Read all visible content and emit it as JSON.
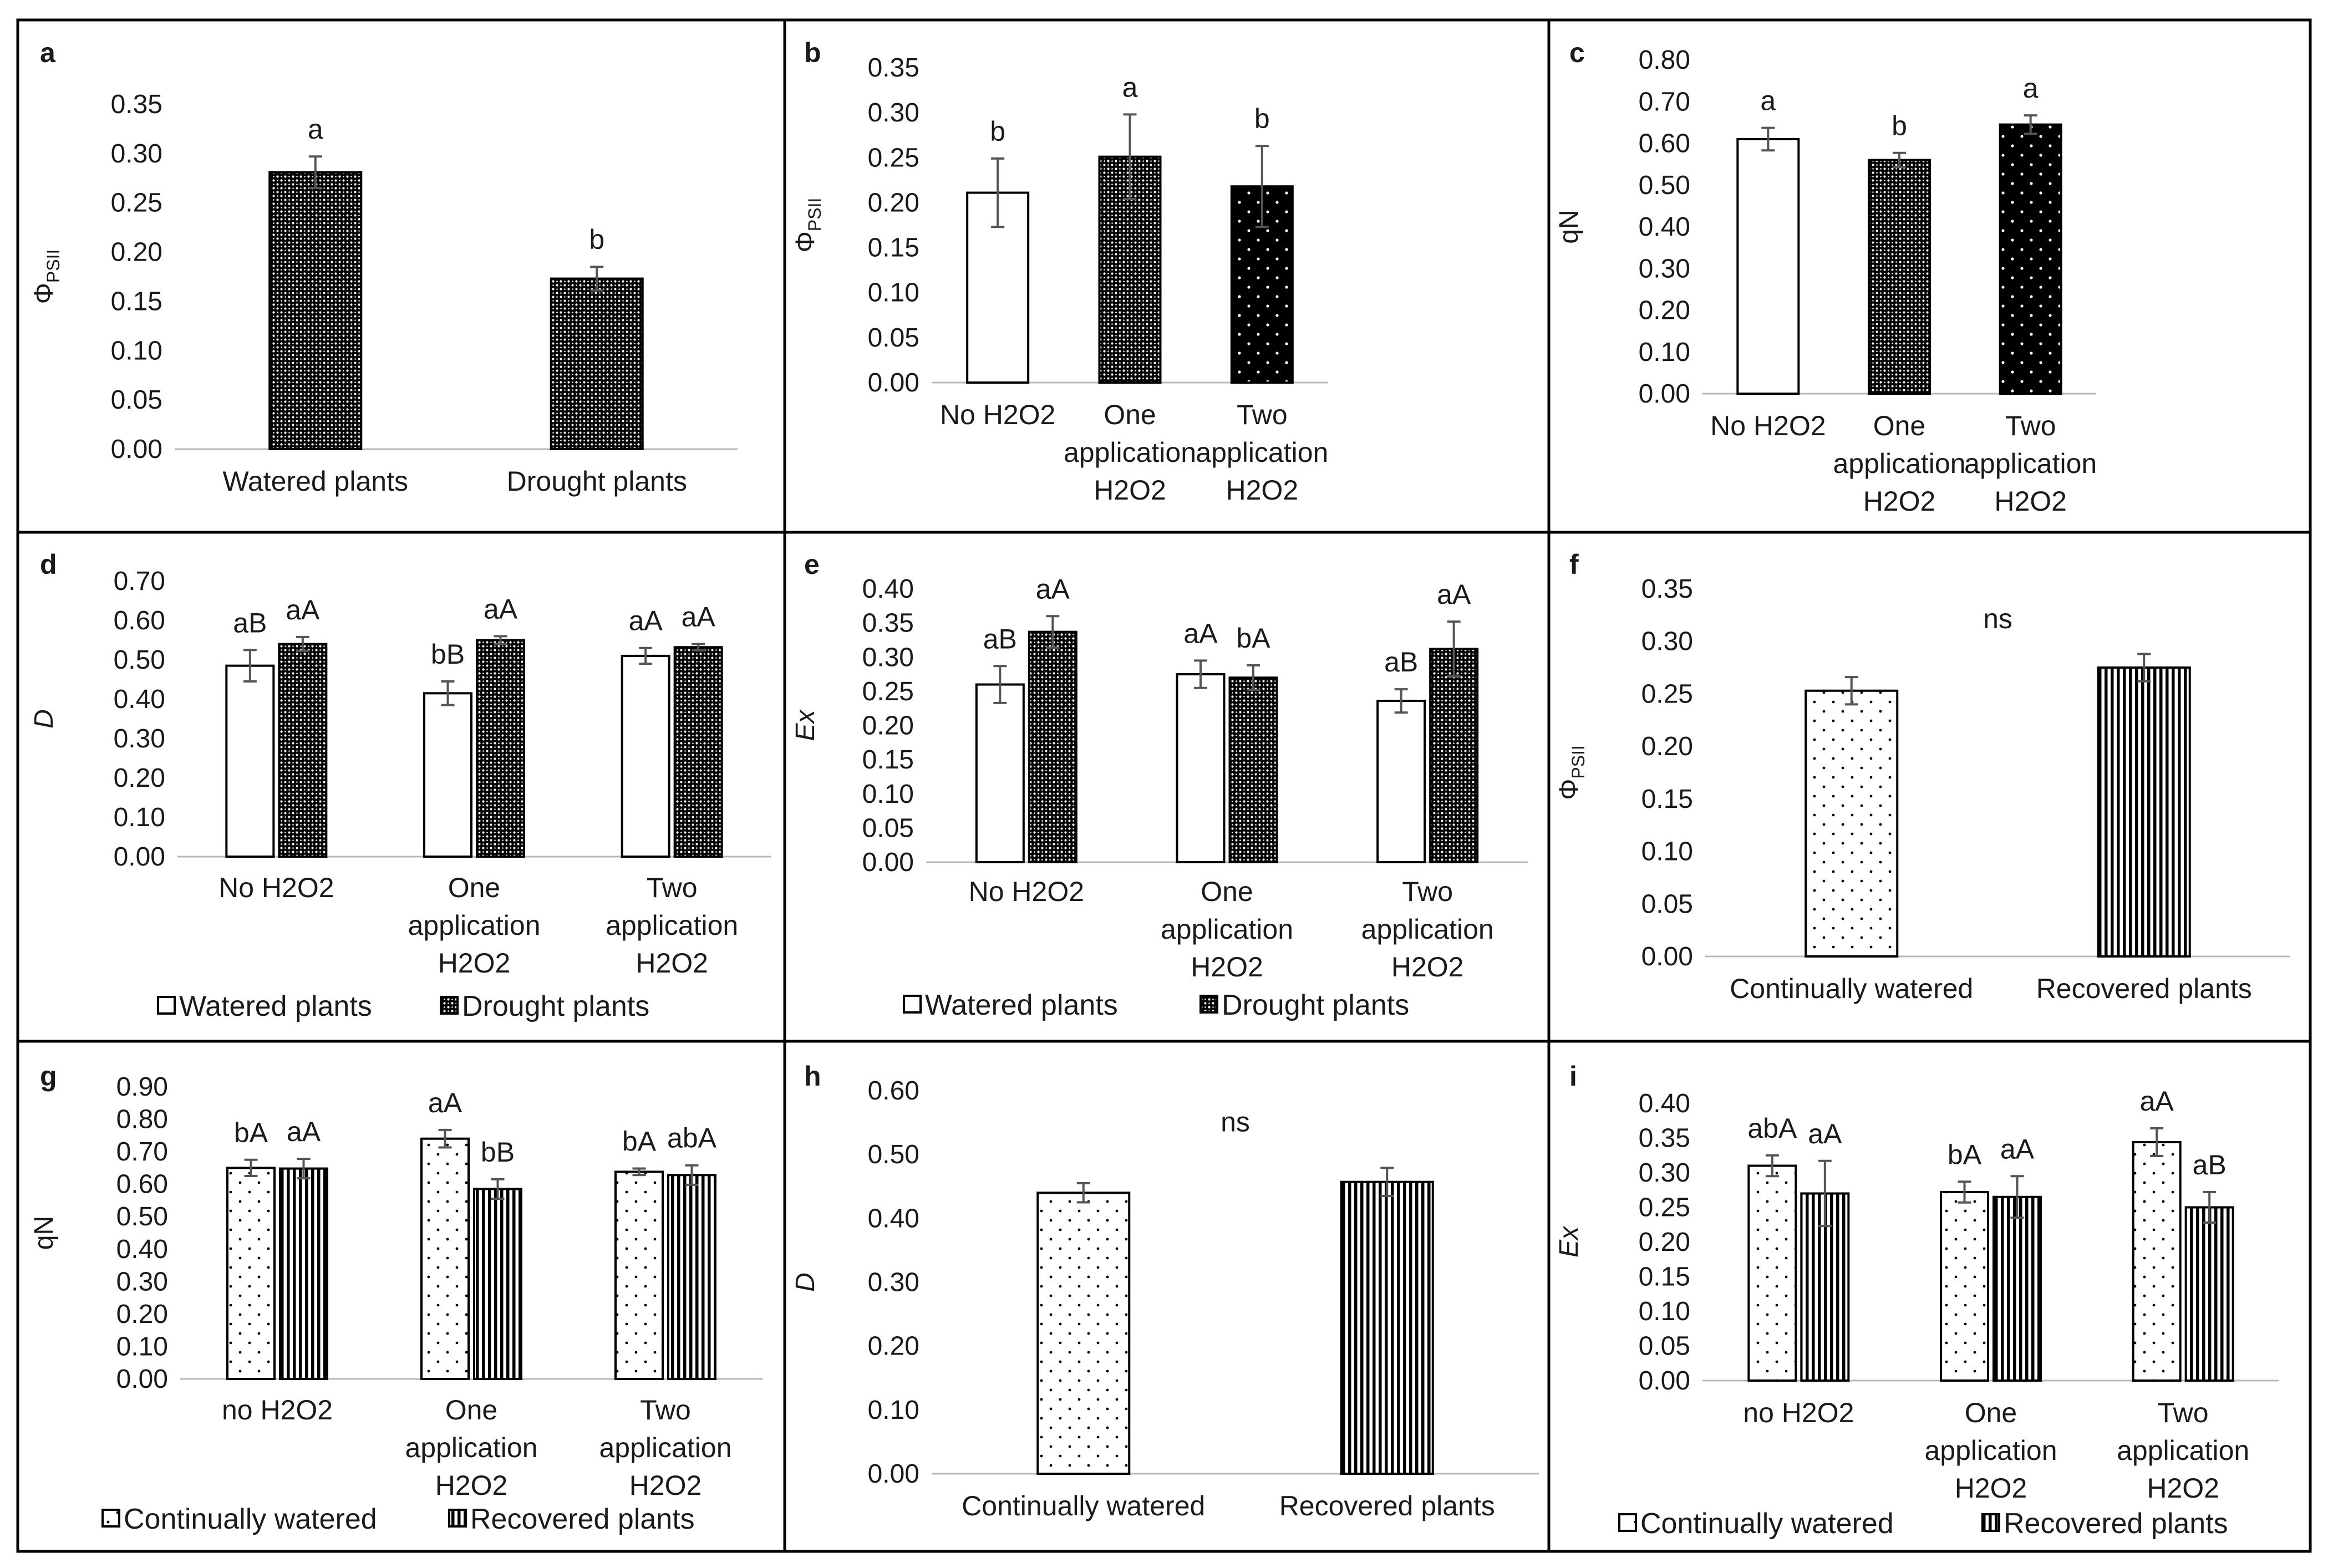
{
  "figure": {
    "colors": {
      "border": "#000000",
      "axis": "#b8b8b8",
      "bar_stroke": "#000000",
      "error": "#555555",
      "text": "#1a1a1a"
    },
    "legend_labels": {
      "water": [
        "Watered plants",
        "Drought plants"
      ],
      "recovery": [
        "Continually watered",
        "Recovered plants"
      ]
    }
  },
  "chart_data": [
    {
      "id": "a",
      "panel_label": "a",
      "type": "bar",
      "ylabel": "Φ",
      "ylabel_sub": "PSII",
      "ylabel_style": "normal",
      "ylim": [
        0,
        0.35
      ],
      "ytick_step": 0.05,
      "y_decimals": 2,
      "categories": [
        [
          "Watered plants"
        ],
        [
          "Drought plants"
        ]
      ],
      "series": [
        {
          "name": "",
          "pattern": "grid",
          "values": [
            0.281,
            0.173
          ],
          "errors": [
            0.016,
            0.012
          ],
          "letters": [
            "a",
            "b"
          ]
        }
      ],
      "legend": null,
      "annotation": null
    },
    {
      "id": "b",
      "panel_label": "b",
      "type": "bar",
      "ylabel": "Φ",
      "ylabel_sub": "PSII",
      "ylabel_style": "normal",
      "ylim": [
        0,
        0.35
      ],
      "ytick_step": 0.05,
      "y_decimals": 2,
      "categories": [
        [
          "No H2O2"
        ],
        [
          "One",
          "application",
          "H2O2"
        ],
        [
          "Two",
          "application",
          "H2O2"
        ]
      ],
      "series": [
        {
          "name": "",
          "patterns": [
            "plain",
            "grid",
            "black"
          ],
          "values": [
            0.211,
            0.251,
            0.218
          ],
          "errors": [
            0.038,
            0.047,
            0.045
          ],
          "letters": [
            "b",
            "a",
            "b"
          ]
        }
      ],
      "legend": null,
      "annotation": null
    },
    {
      "id": "c",
      "panel_label": "c",
      "type": "bar",
      "ylabel": "qN",
      "ylabel_sub": "",
      "ylabel_style": "normal",
      "ylim": [
        0,
        0.8
      ],
      "ytick_step": 0.1,
      "y_decimals": 2,
      "categories": [
        [
          "No H2O2"
        ],
        [
          "One",
          "application",
          "H2O2"
        ],
        [
          "Two",
          "application",
          "H2O2"
        ]
      ],
      "series": [
        {
          "name": "",
          "patterns": [
            "plain",
            "grid",
            "black"
          ],
          "values": [
            0.61,
            0.56,
            0.645
          ],
          "errors": [
            0.027,
            0.017,
            0.022
          ],
          "letters": [
            "a",
            "b",
            "a"
          ]
        }
      ],
      "legend": null,
      "annotation": null
    },
    {
      "id": "d",
      "panel_label": "d",
      "type": "bar",
      "ylabel": "D",
      "ylabel_sub": "",
      "ylabel_style": "italic",
      "ylim": [
        0,
        0.7
      ],
      "ytick_step": 0.1,
      "y_decimals": 2,
      "categories": [
        [
          "No H2O2"
        ],
        [
          "One",
          "application",
          "H2O2"
        ],
        [
          "Two",
          "application",
          "H2O2"
        ]
      ],
      "series": [
        {
          "name": "Watered plants",
          "pattern": "plain",
          "values": [
            0.485,
            0.415,
            0.51
          ],
          "errors": [
            0.04,
            0.03,
            0.02
          ],
          "letters": [
            "aB",
            "bB",
            "aA"
          ]
        },
        {
          "name": "Drought plants",
          "pattern": "grid",
          "values": [
            0.54,
            0.55,
            0.532
          ],
          "errors": [
            0.018,
            0.01,
            0.008
          ],
          "letters": [
            "aA",
            "aA",
            "aA"
          ]
        }
      ],
      "legend": "water",
      "annotation": null
    },
    {
      "id": "e",
      "panel_label": "e",
      "type": "bar",
      "ylabel": "Ex",
      "ylabel_sub": "",
      "ylabel_style": "italic",
      "ylim": [
        0,
        0.4
      ],
      "ytick_step": 0.05,
      "y_decimals": 2,
      "categories": [
        [
          "No H2O2"
        ],
        [
          "One",
          "application",
          "H2O2"
        ],
        [
          "Two",
          "application",
          "H2O2"
        ]
      ],
      "series": [
        {
          "name": "Watered plants",
          "pattern": "plain",
          "values": [
            0.26,
            0.275,
            0.236
          ],
          "errors": [
            0.027,
            0.02,
            0.017
          ],
          "letters": [
            "aB",
            "aA",
            "aB"
          ]
        },
        {
          "name": "Drought plants",
          "pattern": "grid",
          "values": [
            0.337,
            0.27,
            0.312
          ],
          "errors": [
            0.023,
            0.018,
            0.04
          ],
          "letters": [
            "aA",
            "bA",
            "aA"
          ]
        }
      ],
      "legend": "water",
      "annotation": null
    },
    {
      "id": "f",
      "panel_label": "f",
      "type": "bar",
      "ylabel": "Φ",
      "ylabel_sub": "PSII",
      "ylabel_style": "normal",
      "ylim": [
        0,
        0.35
      ],
      "ytick_step": 0.05,
      "y_decimals": 2,
      "categories": [
        [
          "Continually watered"
        ],
        [
          "Recovered plants"
        ]
      ],
      "series": [
        {
          "name": "",
          "patterns": [
            "dots",
            "vstripes"
          ],
          "values": [
            0.253,
            0.275
          ],
          "errors": [
            0.013,
            0.013
          ],
          "letters": [
            "",
            ""
          ]
        }
      ],
      "legend": null,
      "annotation": "ns"
    },
    {
      "id": "g",
      "panel_label": "g",
      "type": "bar",
      "ylabel": "qN",
      "ylabel_sub": "",
      "ylabel_style": "normal",
      "ylim": [
        0,
        0.9
      ],
      "ytick_step": 0.1,
      "y_decimals": 2,
      "categories": [
        [
          "no H2O2"
        ],
        [
          "One",
          "application",
          "H2O2"
        ],
        [
          "Two",
          "application",
          "H2O2"
        ]
      ],
      "series": [
        {
          "name": "Continually watered",
          "pattern": "dots",
          "values": [
            0.65,
            0.74,
            0.638
          ],
          "errors": [
            0.025,
            0.027,
            0.01
          ],
          "letters": [
            "bA",
            "aA",
            "bA"
          ]
        },
        {
          "name": "Recovered plants",
          "pattern": "vstripes",
          "values": [
            0.648,
            0.585,
            0.628
          ],
          "errors": [
            0.03,
            0.03,
            0.03
          ],
          "letters": [
            "aA",
            "bB",
            "abA"
          ]
        }
      ],
      "legend": "recovery",
      "annotation": null
    },
    {
      "id": "h",
      "panel_label": "h",
      "type": "bar",
      "ylabel": "D",
      "ylabel_sub": "",
      "ylabel_style": "italic",
      "ylim": [
        0,
        0.6
      ],
      "ytick_step": 0.1,
      "y_decimals": 2,
      "categories": [
        [
          "Continually watered"
        ],
        [
          "Recovered plants"
        ]
      ],
      "series": [
        {
          "name": "",
          "patterns": [
            "dots",
            "vstripes"
          ],
          "values": [
            0.44,
            0.457
          ],
          "errors": [
            0.015,
            0.022
          ],
          "letters": [
            "",
            ""
          ]
        }
      ],
      "legend": null,
      "annotation": "ns"
    },
    {
      "id": "i",
      "panel_label": "i",
      "type": "bar",
      "ylabel": "Ex",
      "ylabel_sub": "",
      "ylabel_style": "italic",
      "ylim": [
        0,
        0.4
      ],
      "ytick_step": 0.05,
      "y_decimals": 2,
      "categories": [
        [
          "no H2O2"
        ],
        [
          "One",
          "application",
          "H2O2"
        ],
        [
          "Two",
          "application",
          "H2O2"
        ]
      ],
      "series": [
        {
          "name": "Continually watered",
          "pattern": "dots",
          "values": [
            0.31,
            0.272,
            0.344
          ],
          "errors": [
            0.015,
            0.015,
            0.02
          ],
          "letters": [
            "abA",
            "bA",
            "aA"
          ]
        },
        {
          "name": "Recovered plants",
          "pattern": "vstripes",
          "values": [
            0.27,
            0.265,
            0.25
          ],
          "errors": [
            0.047,
            0.03,
            0.022
          ],
          "letters": [
            "aA",
            "aA",
            "aB"
          ]
        }
      ],
      "legend": "recovery",
      "annotation": null
    }
  ]
}
